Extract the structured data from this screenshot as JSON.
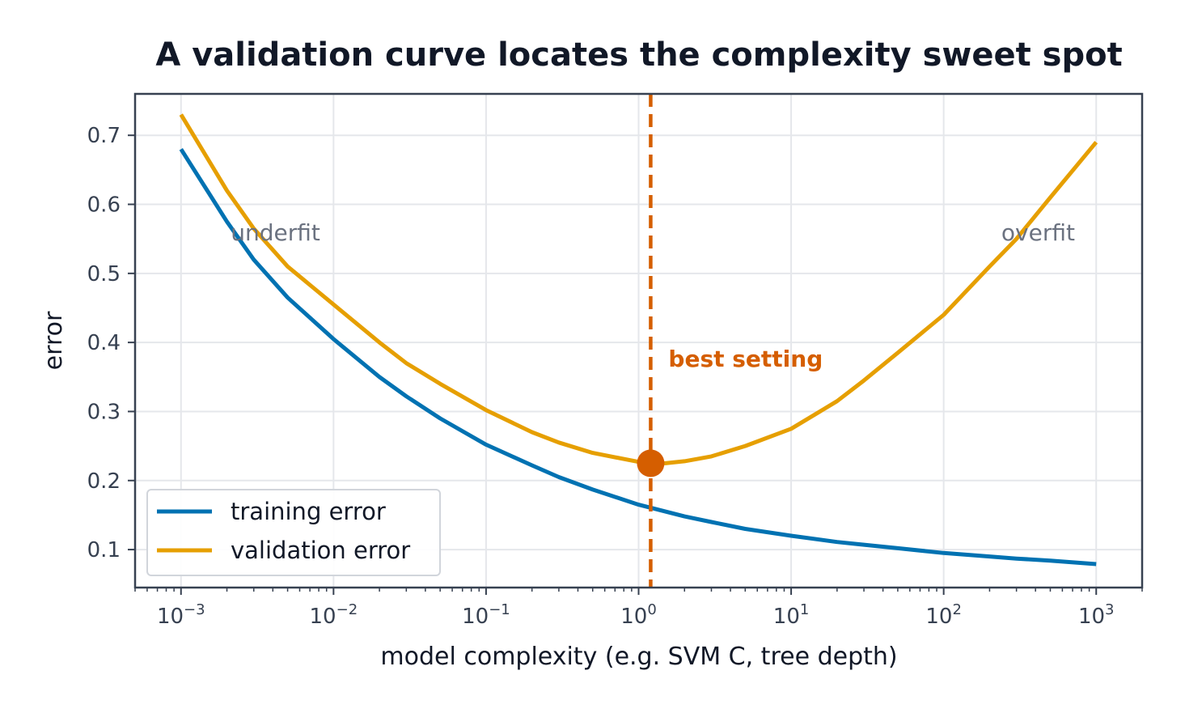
{
  "chart_data": {
    "type": "line",
    "title": "A validation curve locates the complexity sweet spot",
    "xlabel": "model complexity  (e.g. SVM C, tree depth)",
    "ylabel": "error",
    "x_scale": "log",
    "xlim": [
      0.0005,
      2000
    ],
    "ylim": [
      0.045,
      0.76
    ],
    "x_ticks": [
      {
        "value": 0.001,
        "base": "10",
        "exp": "−3"
      },
      {
        "value": 0.01,
        "base": "10",
        "exp": "−2"
      },
      {
        "value": 0.1,
        "base": "10",
        "exp": "−1"
      },
      {
        "value": 1,
        "base": "10",
        "exp": "0"
      },
      {
        "value": 10,
        "base": "10",
        "exp": "1"
      },
      {
        "value": 100,
        "base": "10",
        "exp": "2"
      },
      {
        "value": 1000,
        "base": "10",
        "exp": "3"
      }
    ],
    "y_ticks": [
      {
        "value": 0.1,
        "label": "0.1"
      },
      {
        "value": 0.2,
        "label": "0.2"
      },
      {
        "value": 0.3,
        "label": "0.3"
      },
      {
        "value": 0.4,
        "label": "0.4"
      },
      {
        "value": 0.5,
        "label": "0.5"
      },
      {
        "value": 0.6,
        "label": "0.6"
      },
      {
        "value": 0.7,
        "label": "0.7"
      }
    ],
    "grid": true,
    "legend_position": "lower-left",
    "series": [
      {
        "name": "training error",
        "color": "#0072b2",
        "x": [
          0.001,
          0.002,
          0.003,
          0.005,
          0.01,
          0.02,
          0.03,
          0.05,
          0.1,
          0.2,
          0.3,
          0.5,
          1,
          2,
          3,
          5,
          10,
          20,
          30,
          50,
          100,
          200,
          300,
          500,
          1000
        ],
        "y": [
          0.68,
          0.575,
          0.52,
          0.465,
          0.405,
          0.35,
          0.322,
          0.29,
          0.252,
          0.222,
          0.205,
          0.187,
          0.165,
          0.148,
          0.14,
          0.13,
          0.12,
          0.111,
          0.107,
          0.102,
          0.095,
          0.09,
          0.087,
          0.084,
          0.079
        ]
      },
      {
        "name": "validation error",
        "color": "#e69f00",
        "x": [
          0.001,
          0.002,
          0.003,
          0.005,
          0.01,
          0.02,
          0.03,
          0.05,
          0.1,
          0.2,
          0.3,
          0.5,
          1,
          1.2,
          1.5,
          2,
          3,
          5,
          10,
          20,
          30,
          50,
          100,
          200,
          300,
          500,
          1000
        ],
        "y": [
          0.73,
          0.62,
          0.565,
          0.51,
          0.455,
          0.4,
          0.37,
          0.34,
          0.302,
          0.27,
          0.255,
          0.24,
          0.227,
          0.225,
          0.225,
          0.228,
          0.235,
          0.25,
          0.275,
          0.315,
          0.345,
          0.385,
          0.44,
          0.51,
          0.55,
          0.61,
          0.69
        ]
      }
    ],
    "best": {
      "x": 1.2,
      "y": 0.225,
      "color": "#d55e00",
      "label": "best setting"
    },
    "regions": [
      {
        "label": "underfit",
        "x": 0.002,
        "y": 0.55
      },
      {
        "label": "overfit",
        "x": 200,
        "y": 0.55
      }
    ]
  }
}
